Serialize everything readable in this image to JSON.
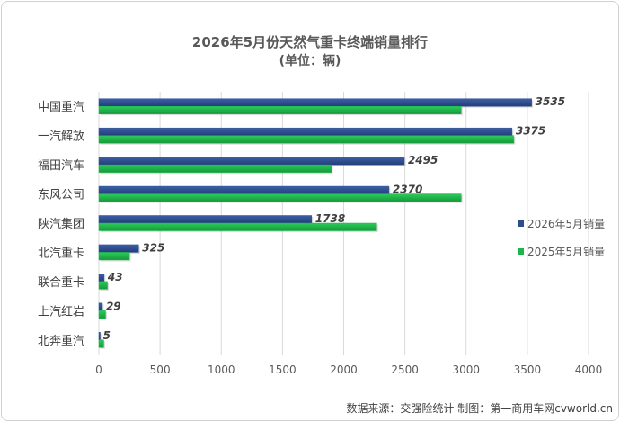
{
  "chart_data": {
    "type": "bar",
    "orientation": "horizontal",
    "title": "2026年5月份天然气重卡终端销量排行",
    "subtitle": "(单位：辆)",
    "categories": [
      "中国重汽",
      "一汽解放",
      "福田汽车",
      "东风公司",
      "陕汽集团",
      "北汽重卡",
      "联合重卡",
      "上汽红岩",
      "北奔重汽"
    ],
    "series": [
      {
        "name": "2026年5月销量",
        "color": "#2e4d8f",
        "values": [
          3535,
          3375,
          2495,
          2370,
          1738,
          325,
          43,
          29,
          5
        ]
      },
      {
        "name": "2025年5月销量",
        "color": "#1fb44a",
        "values": [
          2960,
          3390,
          1900,
          2960,
          2270,
          250,
          70,
          55,
          40
        ]
      }
    ],
    "data_labels": [
      "3535",
      "3375",
      "2495",
      "2370",
      "1738",
      "325",
      "43",
      "29",
      "5"
    ],
    "x_ticks": [
      "0",
      "500",
      "1000",
      "1500",
      "2000",
      "2500",
      "3000",
      "3500",
      "4000"
    ],
    "xlim": [
      0,
      4000
    ],
    "grid": true,
    "legend_position": "right"
  },
  "footer": {
    "source": "数据来源：交强险统计  制图：第一商用车网cvworld.cn"
  }
}
